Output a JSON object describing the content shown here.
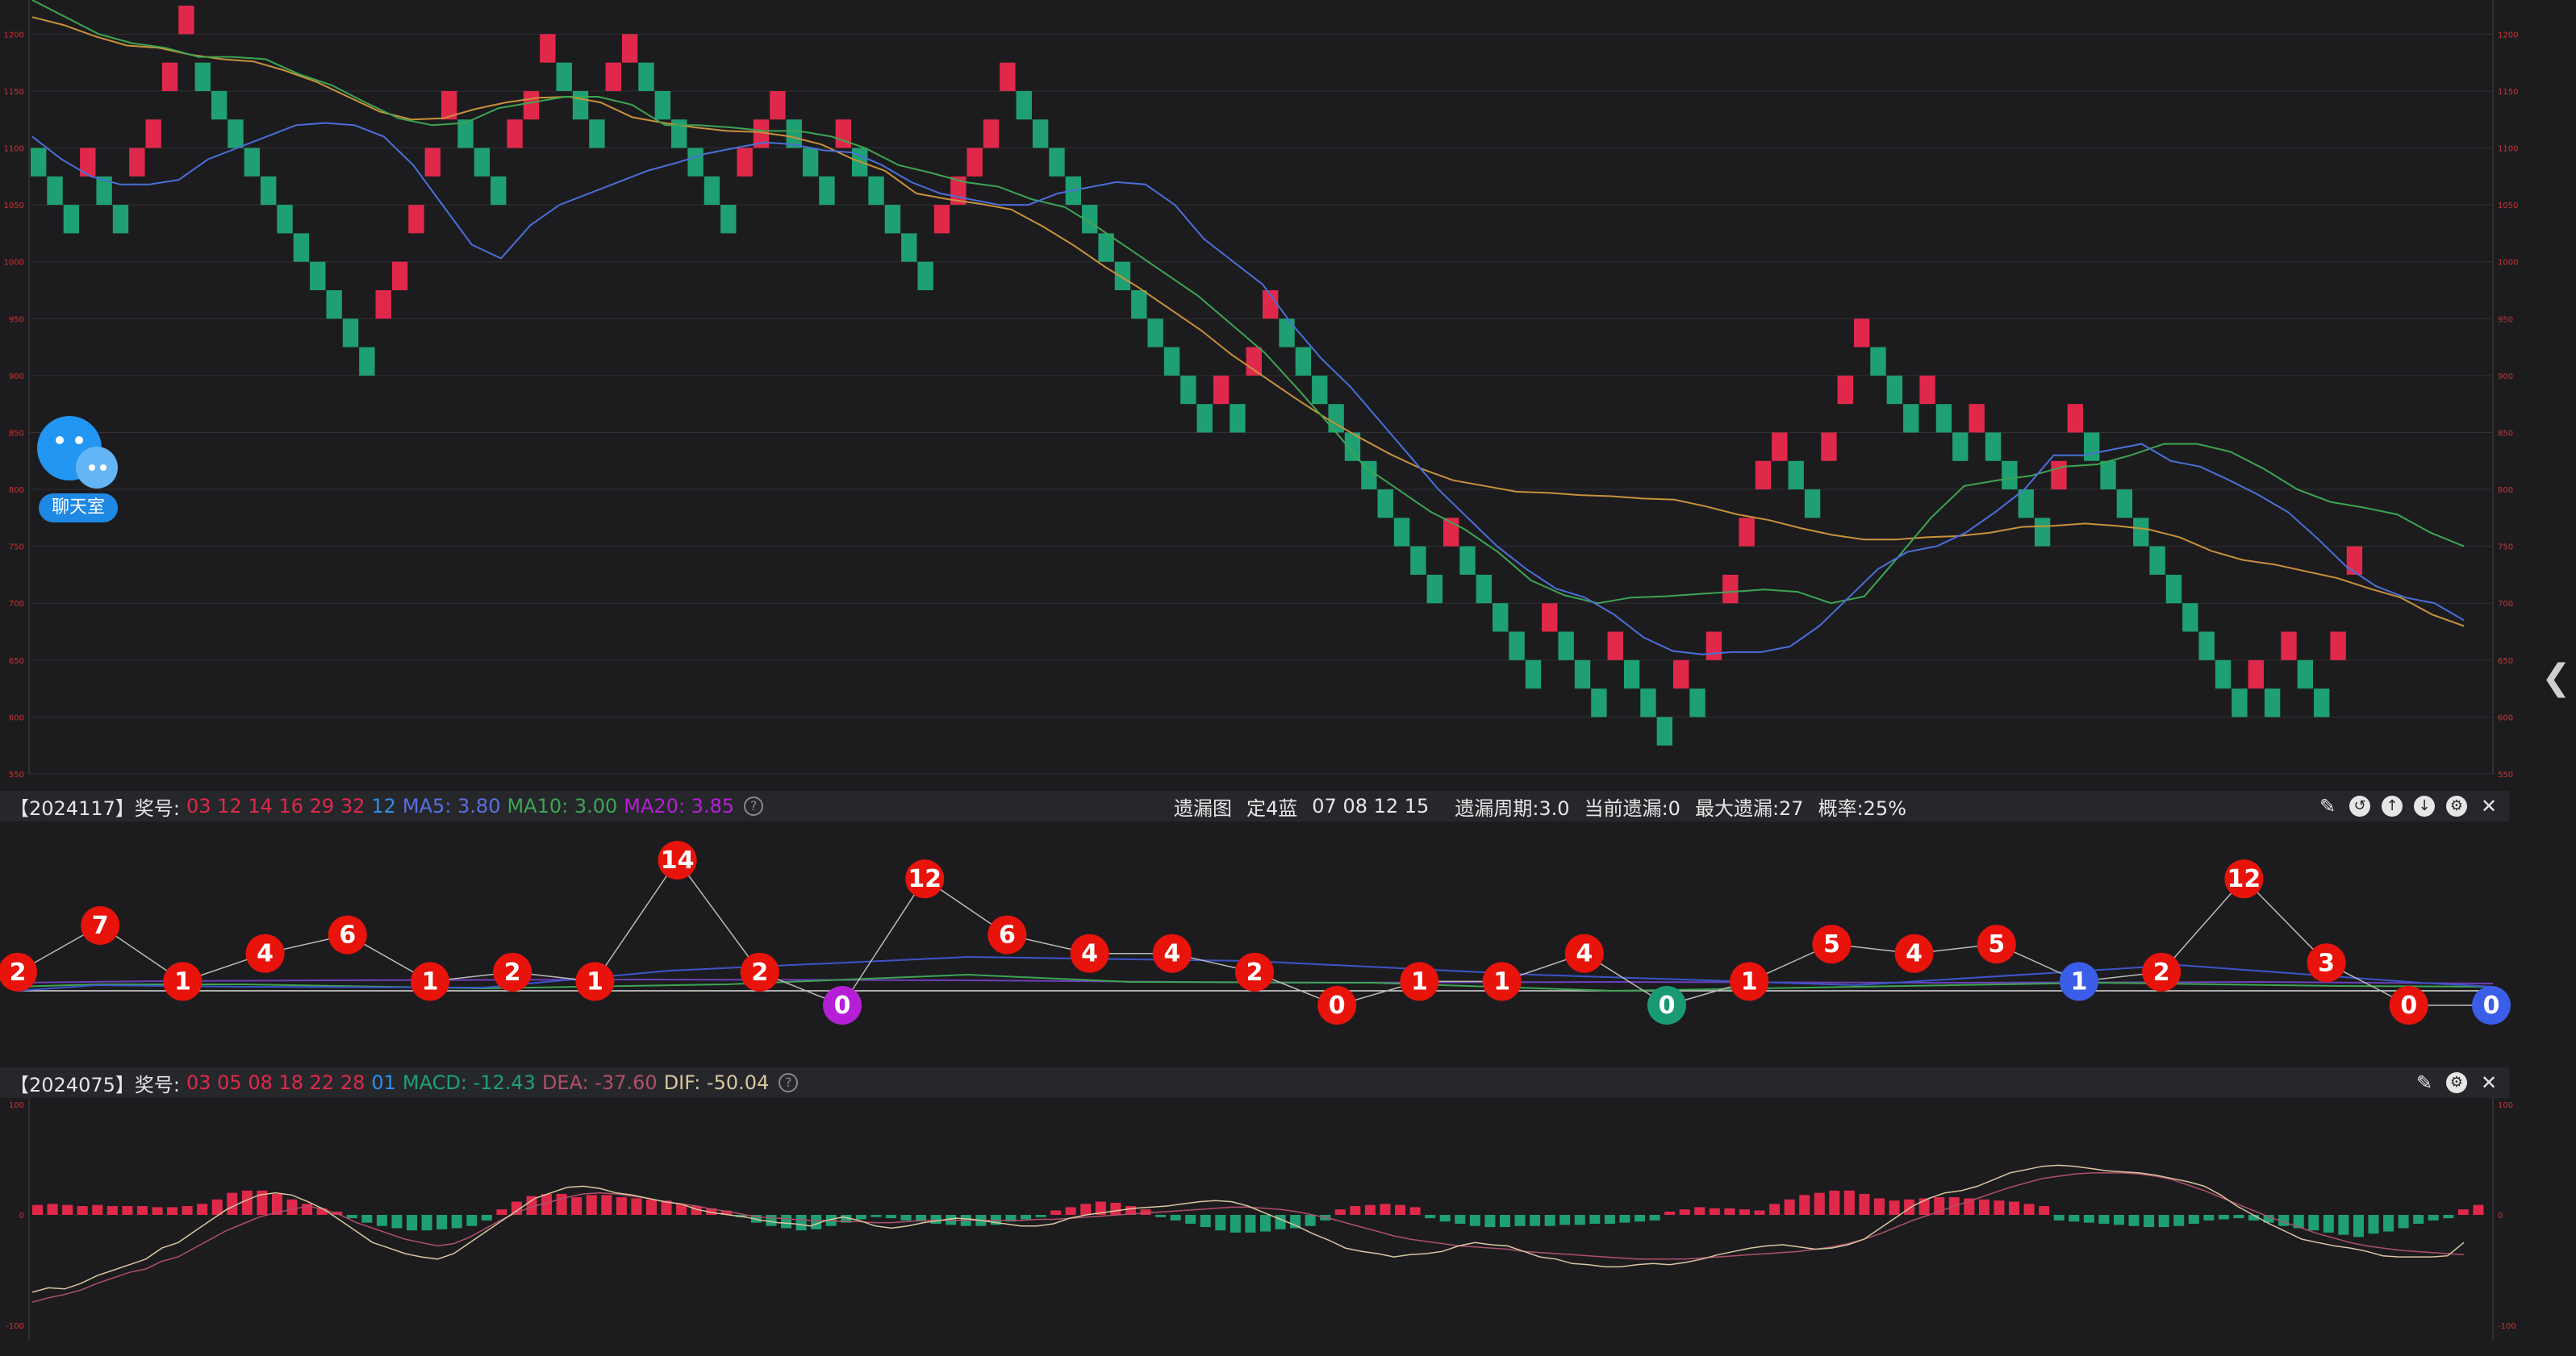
{
  "main_panel": {
    "y_ticks": [
      "1200",
      "1150",
      "1100",
      "1050",
      "1000",
      "950",
      "900",
      "850",
      "800",
      "750",
      "700",
      "650",
      "600",
      "550"
    ]
  },
  "info_bar_1": {
    "issue": "【2024117】奖号:",
    "numbers": "03 12 14 16 29 32",
    "blue": "12",
    "ma5": "MA5: 3.80",
    "ma10": "MA10: 3.00",
    "ma20": "MA20: 3.85",
    "center_title": "遗漏图",
    "center_mode": "定4蓝",
    "center_nums": "07 08 12 15",
    "center_period": "遗漏周期:3.0",
    "center_current": "当前遗漏:0",
    "center_max": "最大遗漏:27",
    "center_prob": "概率:25%"
  },
  "info_bar_2": {
    "issue": "【2024075】奖号:",
    "numbers": "03 05 08 18 22 28",
    "blue": "01",
    "macd": "MACD: -12.43",
    "dea": "DEA: -37.60",
    "dif": "DIF: -50.04"
  },
  "macd_panel": {
    "y_ticks": [
      "100",
      "0",
      "-100"
    ]
  },
  "chat": {
    "label": "聊天室"
  },
  "icons": [
    "pin-icon",
    "undo-icon",
    "up-icon",
    "down-icon",
    "settings-icon",
    "close-icon"
  ],
  "colors": {
    "up": "#e0294a",
    "down": "#1fa073",
    "ma_blue": "#4a6fd8",
    "ma_green": "#3da552",
    "ma_orange": "#c9913a",
    "purple": "#b51fd6"
  },
  "chart_data": [
    {
      "type": "renko",
      "title": "",
      "ylim": [
        550,
        1230
      ],
      "brick_size": 25,
      "y_ticks": [
        1200,
        1150,
        1100,
        1050,
        1000,
        950,
        900,
        850,
        800,
        750,
        700,
        650,
        600,
        550
      ],
      "bricks": [
        [
          "down",
          1100
        ],
        [
          "down",
          1075
        ],
        [
          "down",
          1050
        ],
        [
          "up",
          1100
        ],
        [
          "down",
          1075
        ],
        [
          "down",
          1050
        ],
        [
          "up",
          1100
        ],
        [
          "up",
          1125
        ],
        [
          "up",
          1175
        ],
        [
          "up",
          1225
        ],
        [
          "down",
          1175
        ],
        [
          "down",
          1150
        ],
        [
          "down",
          1125
        ],
        [
          "down",
          1100
        ],
        [
          "down",
          1075
        ],
        [
          "down",
          1050
        ],
        [
          "down",
          1025
        ],
        [
          "down",
          1000
        ],
        [
          "down",
          975
        ],
        [
          "down",
          950
        ],
        [
          "down",
          925
        ],
        [
          "up",
          975
        ],
        [
          "up",
          1000
        ],
        [
          "up",
          1050
        ],
        [
          "up",
          1100
        ],
        [
          "up",
          1150
        ],
        [
          "down",
          1125
        ],
        [
          "down",
          1100
        ],
        [
          "down",
          1075
        ],
        [
          "up",
          1125
        ],
        [
          "up",
          1150
        ],
        [
          "up",
          1200
        ],
        [
          "down",
          1175
        ],
        [
          "down",
          1150
        ],
        [
          "down",
          1125
        ],
        [
          "up",
          1175
        ],
        [
          "up",
          1200
        ],
        [
          "down",
          1175
        ],
        [
          "down",
          1150
        ],
        [
          "down",
          1125
        ],
        [
          "down",
          1100
        ],
        [
          "down",
          1075
        ],
        [
          "down",
          1050
        ],
        [
          "up",
          1100
        ],
        [
          "up",
          1125
        ],
        [
          "up",
          1150
        ],
        [
          "down",
          1125
        ],
        [
          "down",
          1100
        ],
        [
          "down",
          1075
        ],
        [
          "up",
          1125
        ],
        [
          "down",
          1100
        ],
        [
          "down",
          1075
        ],
        [
          "down",
          1050
        ],
        [
          "down",
          1025
        ],
        [
          "down",
          1000
        ],
        [
          "up",
          1050
        ],
        [
          "up",
          1075
        ],
        [
          "up",
          1100
        ],
        [
          "up",
          1125
        ],
        [
          "up",
          1175
        ],
        [
          "down",
          1150
        ],
        [
          "down",
          1125
        ],
        [
          "down",
          1100
        ],
        [
          "down",
          1075
        ],
        [
          "down",
          1050
        ],
        [
          "down",
          1025
        ],
        [
          "down",
          1000
        ],
        [
          "down",
          975
        ],
        [
          "down",
          950
        ],
        [
          "down",
          925
        ],
        [
          "down",
          900
        ],
        [
          "down",
          875
        ],
        [
          "up",
          900
        ],
        [
          "down",
          875
        ],
        [
          "up",
          925
        ],
        [
          "up",
          975
        ],
        [
          "down",
          950
        ],
        [
          "down",
          925
        ],
        [
          "down",
          900
        ],
        [
          "down",
          875
        ],
        [
          "down",
          850
        ],
        [
          "down",
          825
        ],
        [
          "down",
          800
        ],
        [
          "down",
          775
        ],
        [
          "down",
          750
        ],
        [
          "down",
          725
        ],
        [
          "up",
          775
        ],
        [
          "down",
          750
        ],
        [
          "down",
          725
        ],
        [
          "down",
          700
        ],
        [
          "down",
          675
        ],
        [
          "down",
          650
        ],
        [
          "up",
          700
        ],
        [
          "down",
          675
        ],
        [
          "down",
          650
        ],
        [
          "down",
          625
        ],
        [
          "up",
          675
        ],
        [
          "down",
          650
        ],
        [
          "down",
          625
        ],
        [
          "down",
          600
        ],
        [
          "up",
          650
        ],
        [
          "down",
          625
        ],
        [
          "up",
          675
        ],
        [
          "up",
          725
        ],
        [
          "up",
          775
        ],
        [
          "up",
          825
        ],
        [
          "up",
          850
        ],
        [
          "down",
          825
        ],
        [
          "down",
          800
        ],
        [
          "up",
          850
        ],
        [
          "up",
          900
        ],
        [
          "up",
          950
        ],
        [
          "down",
          925
        ],
        [
          "down",
          900
        ],
        [
          "down",
          875
        ],
        [
          "up",
          900
        ],
        [
          "down",
          875
        ],
        [
          "down",
          850
        ],
        [
          "up",
          875
        ],
        [
          "down",
          850
        ],
        [
          "down",
          825
        ],
        [
          "down",
          800
        ],
        [
          "down",
          775
        ],
        [
          "up",
          825
        ],
        [
          "up",
          875
        ],
        [
          "down",
          850
        ],
        [
          "down",
          825
        ],
        [
          "down",
          800
        ],
        [
          "down",
          775
        ],
        [
          "down",
          750
        ],
        [
          "down",
          725
        ],
        [
          "down",
          700
        ],
        [
          "down",
          675
        ],
        [
          "down",
          650
        ],
        [
          "down",
          625
        ],
        [
          "up",
          650
        ],
        [
          "down",
          625
        ],
        [
          "up",
          675
        ],
        [
          "down",
          650
        ],
        [
          "down",
          625
        ],
        [
          "up",
          675
        ],
        [
          "up",
          750
        ]
      ],
      "ma_blue": [
        1110,
        1090,
        1075,
        1068,
        1068,
        1072,
        1090,
        1100,
        1110,
        1120,
        1122,
        1120,
        1110,
        1085,
        1050,
        1015,
        1003,
        1032,
        1050,
        1060,
        1070,
        1080,
        1087,
        1095,
        1100,
        1105,
        1103,
        1098,
        1096,
        1085,
        1070,
        1060,
        1055,
        1050,
        1050,
        1060,
        1065,
        1070,
        1068,
        1050,
        1020,
        1000,
        980,
        945,
        915,
        890,
        860,
        830,
        800,
        775,
        750,
        730,
        713,
        705,
        690,
        670,
        658,
        655,
        657,
        657,
        662,
        680,
        705,
        730,
        745,
        750,
        762,
        780,
        800,
        830,
        830,
        835,
        840,
        825,
        820,
        808,
        795,
        780,
        757,
        732,
        715,
        705,
        700,
        685
      ],
      "ma_green": [
        1230,
        1215,
        1200,
        1192,
        1188,
        1180,
        1180,
        1178,
        1165,
        1155,
        1140,
        1126,
        1120,
        1122,
        1135,
        1140,
        1145,
        1145,
        1138,
        1120,
        1120,
        1118,
        1115,
        1115,
        1110,
        1100,
        1085,
        1078,
        1070,
        1066,
        1055,
        1048,
        1030,
        1010,
        990,
        970,
        945,
        920,
        888,
        855,
        820,
        800,
        780,
        765,
        745,
        720,
        707,
        700,
        705,
        706,
        708,
        710,
        712,
        710,
        700,
        706,
        740,
        775,
        803,
        808,
        812,
        820,
        822,
        830,
        840,
        840,
        833,
        818,
        800,
        789,
        784,
        778,
        762,
        750
      ],
      "ma_orange": [
        1215,
        1208,
        1198,
        1190,
        1188,
        1182,
        1178,
        1176,
        1168,
        1158,
        1145,
        1132,
        1125,
        1126,
        1134,
        1140,
        1144,
        1145,
        1140,
        1127,
        1122,
        1118,
        1115,
        1114,
        1110,
        1103,
        1090,
        1080,
        1060,
        1055,
        1051,
        1046,
        1031,
        1014,
        995,
        978,
        959,
        940,
        918,
        899,
        880,
        862,
        846,
        831,
        818,
        808,
        803,
        798,
        797,
        795,
        794,
        792,
        791,
        785,
        778,
        773,
        766,
        760,
        756,
        756,
        758,
        759,
        762,
        767,
        768,
        770,
        768,
        765,
        758,
        746,
        738,
        734,
        728,
        722,
        713,
        705,
        690,
        680
      ],
      "x_range_bricks": 150
    },
    {
      "type": "line",
      "title": "遗漏图",
      "values": [
        2,
        7,
        1,
        4,
        6,
        1,
        2,
        1,
        14,
        2,
        0,
        12,
        6,
        4,
        4,
        2,
        0,
        1,
        1,
        4,
        0,
        1,
        5,
        4,
        5,
        1,
        2,
        12,
        3,
        0,
        0
      ],
      "point_colors": [
        "red",
        "red",
        "red",
        "red",
        "red",
        "red",
        "red",
        "red",
        "red",
        "red",
        "purple",
        "red",
        "red",
        "red",
        "red",
        "red",
        "red",
        "red",
        "red",
        "red",
        "green",
        "red",
        "red",
        "red",
        "red",
        "blue",
        "red",
        "red",
        "red",
        "red",
        "blue"
      ]
    },
    {
      "type": "bar",
      "title": "MACD",
      "ylim": [
        -100,
        100
      ],
      "y_ticks": [
        100,
        0,
        -100
      ],
      "macd": [
        9,
        10,
        9,
        8,
        9,
        8,
        8,
        8,
        7,
        7,
        8,
        10,
        14,
        20,
        22,
        22,
        19,
        14,
        10,
        6,
        3,
        -3,
        -7,
        -10,
        -12,
        -14,
        -14,
        -13,
        -12,
        -10,
        -5,
        5,
        12,
        17,
        19,
        19,
        16,
        18,
        18,
        16,
        15,
        14,
        13,
        10,
        8,
        6,
        4,
        -2,
        -7,
        -10,
        -12,
        -14,
        -13,
        -10,
        -7,
        -4,
        -2,
        -3,
        -5,
        -6,
        -8,
        -9,
        -10,
        -10,
        -9,
        -6,
        -4,
        -2,
        4,
        7,
        10,
        12,
        11,
        8,
        5,
        -2,
        -5,
        -8,
        -11,
        -14,
        -16,
        -16,
        -15,
        -13,
        -12,
        -10,
        -5,
        5,
        8,
        9,
        10,
        9,
        7,
        -3,
        -6,
        -8,
        -10,
        -11,
        -11,
        -10,
        -10,
        -10,
        -9,
        -9,
        -8,
        -8,
        -7,
        -6,
        -5,
        3,
        5,
        7,
        6,
        6,
        5,
        4,
        10,
        14,
        18,
        20,
        22,
        22,
        19,
        15,
        13,
        14,
        15,
        16,
        16,
        15,
        14,
        13,
        12,
        10,
        8,
        -5,
        -6,
        -7,
        -8,
        -9,
        -10,
        -11,
        -11,
        -10,
        -8,
        -5,
        -4,
        -3,
        -5,
        -7,
        -10,
        -12,
        -14,
        -16,
        -18,
        -20,
        -17,
        -15,
        -12,
        -8,
        -5,
        -3,
        5,
        9
      ],
      "dif": [
        -70,
        -66,
        -67,
        -62,
        -55,
        -50,
        -45,
        -40,
        -30,
        -25,
        -15,
        -5,
        5,
        12,
        18,
        20,
        18,
        12,
        5,
        -5,
        -15,
        -25,
        -30,
        -35,
        -38,
        -40,
        -35,
        -25,
        -15,
        -5,
        5,
        15,
        20,
        25,
        26,
        24,
        20,
        18,
        15,
        12,
        10,
        5,
        2,
        0,
        -2,
        -5,
        -7,
        -8,
        -10,
        -5,
        -2,
        -5,
        -10,
        -12,
        -10,
        -7,
        -5,
        -3,
        -4,
        -6,
        -8,
        -10,
        -10,
        -8,
        -3,
        0,
        2,
        4,
        6,
        7,
        8,
        10,
        12,
        13,
        12,
        8,
        2,
        -4,
        -10,
        -17,
        -23,
        -30,
        -33,
        -35,
        -38,
        -36,
        -35,
        -33,
        -28,
        -25,
        -27,
        -28,
        -33,
        -38,
        -40,
        -44,
        -45,
        -47,
        -47,
        -45,
        -44,
        -45,
        -43,
        -40,
        -36,
        -33,
        -30,
        -28,
        -27,
        -29,
        -31,
        -30,
        -27,
        -22,
        -12,
        -2,
        8,
        15,
        20,
        22,
        26,
        32,
        38,
        41,
        44,
        45,
        44,
        42,
        40,
        39,
        38,
        36,
        33,
        30,
        26,
        18,
        8,
        0,
        -8,
        -15,
        -22,
        -25,
        -28,
        -30,
        -33,
        -37,
        -38,
        -38,
        -38,
        -37,
        -25
      ],
      "dea": [
        -79,
        -75,
        -72,
        -68,
        -62,
        -57,
        -52,
        -49,
        -42,
        -38,
        -30,
        -22,
        -14,
        -8,
        -2,
        2,
        5,
        8,
        5,
        0,
        -7,
        -12,
        -17,
        -22,
        -25,
        -28,
        -26,
        -20,
        -12,
        -4,
        3,
        8,
        12,
        16,
        19,
        20,
        19,
        17,
        15,
        12,
        10,
        8,
        5,
        3,
        0,
        -2,
        -3,
        -4,
        -5,
        -5,
        -6,
        -6,
        -7,
        -7,
        -6,
        -5,
        -5,
        -5,
        -5,
        -5,
        -5,
        -5,
        -4,
        -4,
        -3,
        -2,
        -1,
        0,
        1,
        2,
        3,
        4,
        5,
        6,
        7,
        7,
        6,
        5,
        3,
        0,
        -3,
        -7,
        -11,
        -15,
        -19,
        -22,
        -24,
        -26,
        -28,
        -29,
        -30,
        -31,
        -33,
        -34,
        -35,
        -36,
        -37,
        -38,
        -39,
        -40,
        -40,
        -40,
        -40,
        -39,
        -38,
        -37,
        -36,
        -35,
        -34,
        -33,
        -31,
        -29,
        -26,
        -22,
        -17,
        -11,
        -5,
        0,
        5,
        10,
        15,
        20,
        25,
        29,
        33,
        35,
        37,
        38,
        38,
        38,
        37,
        35,
        32,
        27,
        22,
        16,
        10,
        4,
        -2,
        -7,
        -12,
        -17,
        -21,
        -25,
        -28,
        -30,
        -32,
        -33,
        -34,
        -35,
        -36
      ]
    }
  ]
}
